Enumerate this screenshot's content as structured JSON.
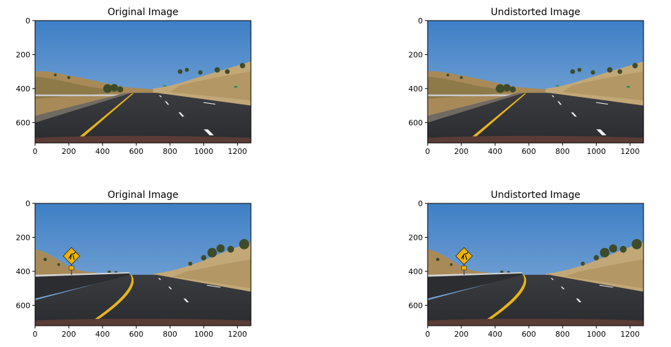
{
  "figure": {
    "panels": [
      {
        "title": "Original Image",
        "scene": "road-straight"
      },
      {
        "title": "Undistorted Image",
        "scene": "road-straight"
      },
      {
        "title": "Original Image",
        "scene": "road-curve-sign"
      },
      {
        "title": "Undistorted Image",
        "scene": "road-curve-sign"
      }
    ],
    "x_ticks": [
      "0",
      "200",
      "400",
      "600",
      "800",
      "1000",
      "1200"
    ],
    "y_ticks": [
      "0",
      "200",
      "400",
      "600"
    ],
    "x_range": [
      0,
      1280
    ],
    "y_range": [
      0,
      720
    ]
  },
  "colors": {
    "sky": "#4f86c6",
    "hills": "#b59a66",
    "road": "#2f3134",
    "lane_yellow": "#e8b51b",
    "lane_white": "#f2f2f2",
    "sign": "#f0b400"
  }
}
